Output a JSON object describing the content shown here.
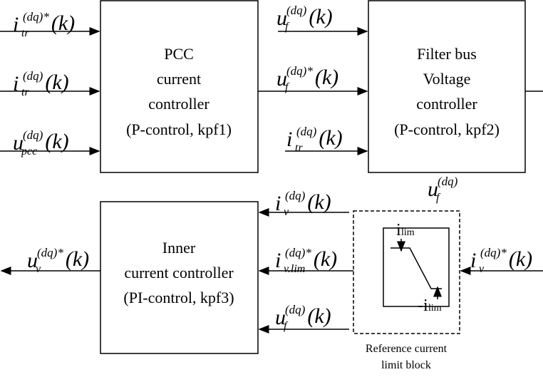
{
  "blocks": [
    {
      "lines": [
        "PCC",
        "current",
        "controller",
        "(P-control, kpf1)"
      ]
    },
    {
      "lines": [
        "Filter bus",
        "Voltage",
        "controller",
        "(P-control, kpf2)"
      ]
    },
    {
      "lines": [
        "Inner",
        "current controller",
        "(PI-control, kpf3)"
      ]
    }
  ],
  "limit_block": {
    "upper": {
      "base": "i",
      "sub": "lim"
    },
    "lower": {
      "base": "-i",
      "sub": "lim"
    },
    "caption": [
      "Reference current",
      "limit block"
    ]
  },
  "labels": [
    {
      "base": "i",
      "sub": "tr",
      "sup": "(dq)*",
      "arg": "(k)"
    },
    {
      "base": "i",
      "sub": "tr",
      "sup": "(dq)",
      "arg": "(k)"
    },
    {
      "base": "u",
      "sub": "pcc",
      "sup": "(dq)",
      "arg": "(k)"
    },
    {
      "base": "u",
      "sub": "f",
      "sup": "(dq)",
      "arg": "(k)"
    },
    {
      "base": "u",
      "sub": "f",
      "sup": "(dq)*",
      "arg": "(k)"
    },
    {
      "base": "i",
      "sub": "tr",
      "sup": "(dq)",
      "arg": "(k)"
    },
    {
      "base": "u",
      "sub": "f",
      "sup": "(dq)"
    },
    {
      "base": "i",
      "sub": "v",
      "sup": "(dq)",
      "arg": "(k)"
    },
    {
      "base": "i",
      "sub": "v.lim",
      "sup": "(dq)*",
      "arg": "(k)"
    },
    {
      "base": "u",
      "sub": "f",
      "sup": "(dq)",
      "arg": "(k)"
    },
    {
      "base": "u",
      "sub": "v",
      "sup": "(dq)*",
      "arg": "(k)"
    },
    {
      "base": "i",
      "sub": "v",
      "sup": "(dq)*",
      "arg": "(k)"
    }
  ]
}
